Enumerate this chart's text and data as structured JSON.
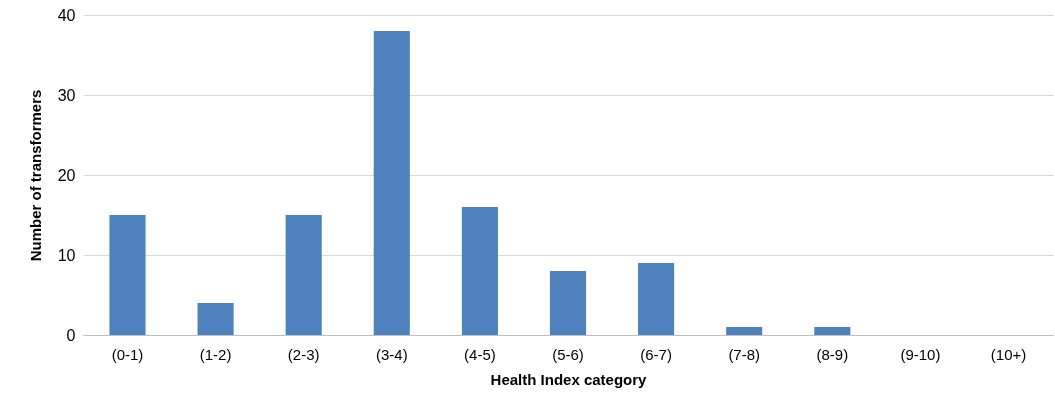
{
  "chart_data": {
    "type": "bar",
    "xlabel": "Health Index category",
    "ylabel": "Number of transformers",
    "categories": [
      "(0-1)",
      "(1-2)",
      "(2-3)",
      "(3-4)",
      "(4-5)",
      "(5-6)",
      "(6-7)",
      "(7-8)",
      "(8-9)",
      "(9-10)",
      "(10+)"
    ],
    "values": [
      15,
      4,
      15,
      38,
      16,
      8,
      9,
      1,
      1,
      0,
      0
    ],
    "color": "#4f81bd",
    "ylim": [
      0,
      40
    ],
    "yticks": [
      0,
      10,
      20,
      30,
      40
    ],
    "grid": "y"
  }
}
